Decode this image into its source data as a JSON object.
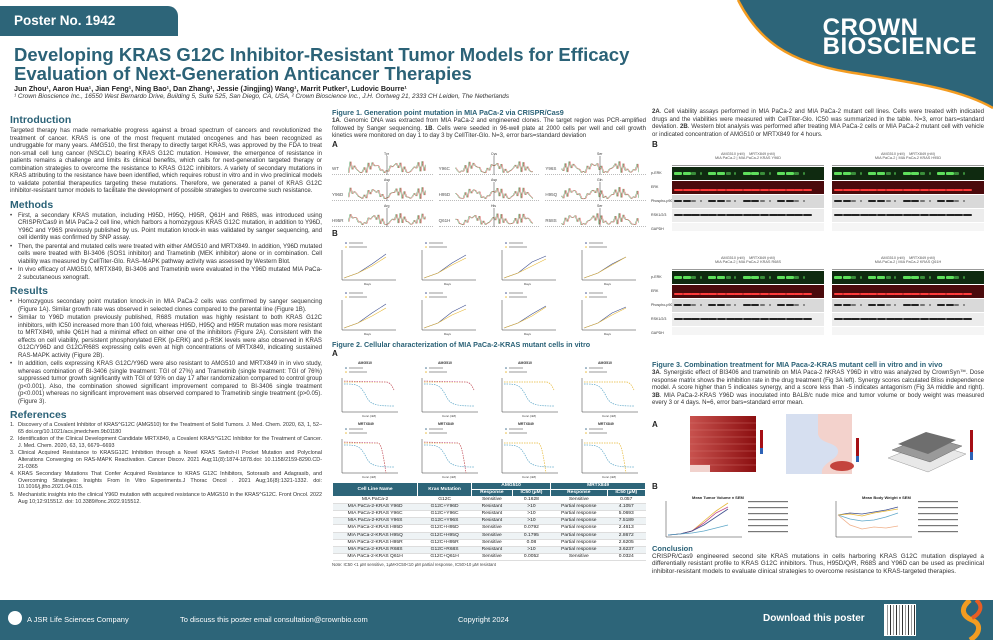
{
  "header": {
    "poster_no": "Poster No. 1942",
    "title": "Developing KRAS G12C Inhibitor-Resistant Tumor Models for Efficacy Evaluation of Next-Generation Anticancer Therapies",
    "authors": "Jun Zhou¹, Aaron Hua¹, Jian Feng¹, Ning Bao¹, Dan Zhang¹, Jessie (Jingjing) Wang¹, Marrit Putker², Ludovic Bourre¹",
    "affiliations": "¹ Crown Bioscience Inc., 16550 West Bernardo Drive, Building 5, Suite 525, San Diego, CA, USA, ² Crown Bioscience Inc., J.H. Oortweg 21, 2333 CH Leiden, The Netherlands",
    "brand_line1": "CROWN",
    "brand_line2": "BIOSCIENCE",
    "brand_color": "#2d6579",
    "accent_color": "#f39c21"
  },
  "introduction": {
    "heading": "Introduction",
    "text": "Targeted therapy has made remarkable progress against a broad spectrum of cancers and revolutionized the treatment of cancer. KRAS is one of the most frequent mutated oncogenes and has been recognized as undruggable for many years. AMG510, the first therapy to directly target KRAS, was approved by the FDA to treat non-small cell lung cancer (NSCLC) bearing KRAS G12C mutation. However, the emergence of resistance in patients remains a challenge and limits its clinical benefits, which calls for next-generation targeted therapy or combination strategies to overcome the resistance to KRAS G12C inhibitors. A variety of secondary mutations in KRAS attributing to the resistance have been identified, which requires robust in vitro and in vivo preclinical models to validate potential therapeutics targeting these mutations. Therefore, we generated a panel of KRAS G12C inhibitor-resistant tumor models to facilitate the development of possible strategies to overcome such resistance."
  },
  "methods": {
    "heading": "Methods",
    "items": [
      "First, a secondary KRAS mutation, including H95D, H95Q, H95R, Q61H and R68S, was introduced using CRISPR/Cas9 in MIA PaCa-2 cell line, which harbors a homozygous KRAS G12C mutation, in addition to Y96D, Y96C and Y96S previously published by us. Point mutation knock-in was validated by sanger sequencing, and cell identity was confirmed by SNP assay.",
      "Then, the parental and mutated cells were treated with either AMG510 and MRTX849. In addition, Y96D mutated cells were treated with BI-3406 (SOS1 inhibitor) and Trametinib (MEK inhibitor) alone or in combination. Cell viability was measured by CellTiter-Glo. RAS–MAPK pathway activity was assessed by Western Blot.",
      "In vivo efficacy of AMG510, MRTX849, BI-3406 and Trametinib were evaluated in the Y96D mutated MIA PaCa-2 subcutaneous xenograft."
    ]
  },
  "results": {
    "heading": "Results",
    "items": [
      "Homozygous secondary point mutation knock-in in MIA PaCa-2 cells was confirmed by sanger sequencing (Figure 1A). Similar growth rate was observed in selected clones compared to the parental line (Figure 1B).",
      "Similar to Y96D mutation previously published, R68S mutation was highly resistant to both KRAS G12C inhibitors, with IC50 increased more than 100 fold, whereas H95D, H95Q and H95R mutation was more resistant to MRTX849, while Q61H had a minimal effect on either one of the inhibitors (Figure 2A). Consistent with the effects on cell viability, persistent phosphorylated ERK (p-ERK) and p-RSK levels were also observed in KRAS G12C/Y96D and G12C/R68S expressing cells even at high concentrations of MRTX849, indicating sustained RAS-MAPK activity (Figure 2B).",
      "In addition, cells expressing KRAS G12C/Y96D were also resistant to AMG510 and MRTX849 in in vivo study, whereas combination of BI-3406 (single treatment: TGI of 27%) and Trametinib (single treatment: TGI of 76%) suppressed tumor growth significantly with TGI of 93% on day 17 after randomization compared to control group (p<0.001). Also, the combination showed significant improvement compared to BI-3406 single treatment (p<0.001) whereas no significant improvement was observed compared to Trametinib single treatment (p>0.05). (Figure 3)."
    ]
  },
  "references": {
    "heading": "References",
    "items": [
      "Discovery of a Covalent Inhibitor of KRAS^G12C (AMG510) for the Treatment of Solid Tumors. J. Med. Chem. 2020, 63, 1, 52–65 doi.org/10.1021/acs.jmedchem.9b01180",
      "Identification of the Clinical Development Candidate MRTX849, a Covalent KRAS^G12C Inhibitor for the Treatment of Cancer. J. Med. Chem. 2020, 63, 13, 6679–6693",
      "Clinical Acquired Resistance to KRASG12C Inhibition through a Novel KRAS Switch-II Pocket Mutation and Polyclonal Alterations Converging on RAS-MAPK Reactivation. Cancer Discov. 2021 Aug;11(8):1874-1878.doi: 10.1158/2159-8290.CD-21-0365",
      "KRAS Secondary Mutations That Confer Acquired Resistance to KRAS G12C Inhibitors, Sotorasib and Adagrasib, and Overcoming Strategies: Insights From In Vitro Experiments.J Thorac Oncol . 2021 Aug;16(8):1321-1332. doi: 10.1016/j.jtho.2021.04.015.",
      "Mechanistic insights into the clinical Y96D mutation with acquired resistance to AMG510 in the KRAS^G12C. Front Oncol. 2022 Aug 10;12:915512. doi: 10.3389/fonc.2022.915512."
    ]
  },
  "figure1": {
    "title": "Figure 1. Generation point mutation in MIA PaCa-2 via CRISPR/Cas9",
    "caption_a_label": "1A",
    "caption_a": ". Genomic DNA was extracted from MIA PaCa-2 and engineered clones. The target region was PCR-amplified followed by Sanger sequencing. ",
    "caption_b_label": "1B",
    "caption_b": ". Cells were seeded in 96-well plate at 2000 cells per well and cell growth kinetics were monitored on  day 1 to day 3 by CellTiter-Glo. N=3, error bars=standard deviation",
    "panel_a": "A",
    "panel_b": "B",
    "sequences": [
      {
        "label": "WT",
        "residue": "Tyr"
      },
      {
        "label": "Y96C",
        "residue": "Cys"
      },
      {
        "label": "Y96S",
        "residue": "Ser"
      },
      {
        "label": "Y96D",
        "residue": "Asp"
      },
      {
        "label": "H95D",
        "residue": "Asp"
      },
      {
        "label": "H95Q",
        "residue": "Gln"
      },
      {
        "label": "H95R",
        "residue": "Arg"
      },
      {
        "label": "Q61H",
        "residue": "His"
      },
      {
        "label": "R68S",
        "residue": "Ser"
      }
    ],
    "growth_xlabel": "Days",
    "growth_legend": [
      "MIA PaCa-2",
      "MIA PaCa-2 KRAS mutant"
    ]
  },
  "figure2": {
    "title": "Figure 2. Cellular characterization of MIA PaCa-2-KRAS mutant cells in vitro",
    "panel_a": "A",
    "dr_titles": [
      "AMG510",
      "AMG510",
      "AMG510",
      "AMG510",
      "MRTX849",
      "MRTX849",
      "MRTX849",
      "MRTX849"
    ],
    "dr_xlabel": "Conc.(nM)",
    "dr_ylabel": "% Viability",
    "table": {
      "headers": [
        "Cell Line Name",
        "Kras Mutation",
        "AMG510",
        "MRTX849"
      ],
      "subheaders": [
        "Response",
        "IC50 (µM)",
        "Response",
        "IC50 (µM)"
      ],
      "rows": [
        [
          "MIA PaCa-2",
          "G12C",
          "Sensitive",
          "0.1628",
          "Sensitive",
          "0.057"
        ],
        [
          "MIA PaCa-2-KRAS Y96D",
          "G12C+Y96D",
          "Resistant",
          ">10",
          "Partial response",
          "4.1057"
        ],
        [
          "MIA PaCa-2-KRAS Y96C",
          "G12C+Y96C",
          "Resistant",
          ">10",
          "Partial response",
          "5.0693"
        ],
        [
          "MIA PaCa-2-KRAS Y96S",
          "G12C+Y96S",
          "Resistant",
          ">10",
          "Partial response",
          "7.5189"
        ],
        [
          "MIA PaCa-2-KRAS H95D",
          "G12C+H95D",
          "Sensitive",
          "0.0792",
          "Partial response",
          "2.4613"
        ],
        [
          "MIA PaCa-2-KRAS H95Q",
          "G12C+H95Q",
          "Sensitive",
          "0.1795",
          "Partial response",
          "2.8672"
        ],
        [
          "MIA PaCa-2-KRAS H95R",
          "G12C+H95R",
          "Sensitive",
          "0.08",
          "Partial response",
          "2.6205"
        ],
        [
          "MIA PaCa-2-KRAS R68S",
          "G12C+R68S",
          "Resistant",
          ">10",
          "Partial response",
          "3.6237"
        ],
        [
          "MIA PaCa-2-KRAS Q61H",
          "G12C+Q61H",
          "Sensitive",
          "0.0052",
          "Sensitive",
          "0.0324"
        ]
      ],
      "note": "Note: IC50 <1 µM sensitive, 1µM<IC50<10 µM partial response, IC50>10 µM resistant"
    }
  },
  "figure2_caption": {
    "a_label": "2A",
    "a_text": ". Cell viability assays performed in MIA PaCa-2 and MIA PaCa-2 mutant cell lines. Cells were treated with indicated drugs and the viabilities were measured with CellTiter-Glo. IC50 was summarized in the table. N=3, error bars=standard deviation. ",
    "b_label": "2B",
    "b_text": ". Western blot analysis was performed after treating MIA PaCa-2 cells or MIA PaCa-2 mutant cell with vehicle or indicated concentration of AMG510 or MRTX849 for 4 hours.",
    "panel_b": "B",
    "blot_rows": [
      "p-ERK",
      "ERK",
      "Phospho-p90RSK",
      "RSK1/2/3",
      "GAPDH"
    ],
    "blot_groups": [
      {
        "drug1": "AMG510 (nM)",
        "drug2": "MRTX849 (nM)",
        "lines": "MIA PaCa-2 | MIA PaCa-2 KRAS Y96D"
      },
      {
        "drug1": "AMG510 (nM)",
        "drug2": "MRTX849 (nM)",
        "lines": "MIA PaCa-2 | MIA PaCa-2 KRAS H95D"
      },
      {
        "drug1": "AMG510 (nM)",
        "drug2": "MRTX849 (nM)",
        "lines": "MIA PaCa-2 | MIA PaCa-2 KRAS R68S"
      },
      {
        "drug1": "AMG510 (nM)",
        "drug2": "MRTX849 (nM)",
        "lines": "MIA PaCa-2 | MIA PaCa-2 KRAS Q61H"
      }
    ]
  },
  "figure3": {
    "title": "Figure 3. Combination treatment for MIA Paca-2-KRAS mutant cell in vitro and in vivo",
    "a_label": "3A",
    "a_text": ". Synergistic effect of BI3406 and trametinib on MIA Paca-2 hKRAS Y96D in vitro was analyzed by CrownSyn™. Dose response matrix shows the inhibition rate in the drug treatment (Fig 3A left). Synergy scores calculated Bliss independence model. A score higher than 5 indicates synergy, and a score less than -5 indicates antagonism (Fig 3A middle and right). ",
    "b_label": "3B",
    "b_text": ". MIA PaCa-2-KRAS Y96D was inoculated into BALB/c nude mice and tumor volume or body weight was measured every 3 or 4 days. N=6, error bars=standard error mean.",
    "panel_a": "A",
    "panel_b": "B",
    "chart_titles": [
      "Mean Tumor Volume ± SEM",
      "Mean Body Weight ± SEM"
    ],
    "xlabel": "Study Days"
  },
  "conclusion": {
    "heading": "Conclusion",
    "text": "CRISPR/Cas9 engineered second site KRAS mutations in cells harboring KRAS G12C mutation displayed a differentially resistant profile to KRAS G12C inhibitors. Thus, H95D/Q/R, R68S and Y96D can be used as preclinical inhibitor-resistant models to evaluate clinical strategies to overcome resistance to KRAS-targeted therapies."
  },
  "footer": {
    "company": "A JSR Life Sciences Company",
    "contact": "To discuss this poster email consultation@crownbio.com",
    "copyright": "Copyright 2024",
    "download": "Download this poster"
  }
}
